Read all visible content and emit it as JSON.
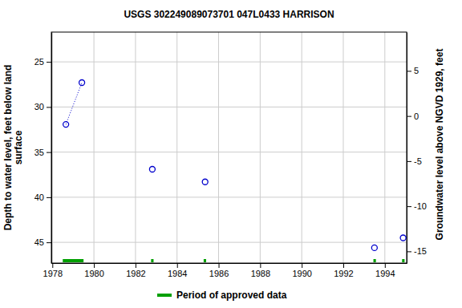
{
  "chart_data": {
    "type": "scatter",
    "title": "USGS 302249089073701 047L0433  HARRISON",
    "y_label": [
      "Depth to water level, feet below land",
      "surface"
    ],
    "y2_label": "Groundwater level above NGVD 1929, feet",
    "xlim": [
      1977.95,
      1995.05
    ],
    "xticks": [
      1978,
      1980,
      1982,
      1984,
      1986,
      1988,
      1990,
      1992,
      1994
    ],
    "ylim": [
      21.7,
      47.3
    ],
    "yticks": [
      25,
      30,
      35,
      40,
      45
    ],
    "y2lim": [
      9.3,
      -16.3
    ],
    "y2ticks": [
      5,
      0,
      -5,
      -10,
      -15
    ],
    "grid": true,
    "legend": "bottom",
    "series": [
      {
        "type": "line",
        "line_style": "dotted",
        "color": "#0000cc",
        "x": [
          1978.65,
          1979.42
        ],
        "values": [
          31.93,
          27.3
        ]
      },
      {
        "type": "scatter",
        "marker": "circle",
        "color": "#0000cc",
        "x": [
          1978.65,
          1979.42,
          1982.81,
          1985.35,
          1993.5,
          1994.88
        ],
        "values": [
          31.93,
          27.3,
          36.9,
          38.3,
          45.6,
          44.5
        ]
      }
    ],
    "approved_periods": {
      "name": "Period of approved data",
      "color": "#00a000",
      "periods": [
        {
          "start": 1978.5,
          "end": 1979.5
        },
        {
          "start": 1982.75,
          "end": 1982.87
        },
        {
          "start": 1985.28,
          "end": 1985.4
        },
        {
          "start": 1993.45,
          "end": 1993.57
        },
        {
          "start": 1994.83,
          "end": 1994.95
        }
      ]
    }
  }
}
